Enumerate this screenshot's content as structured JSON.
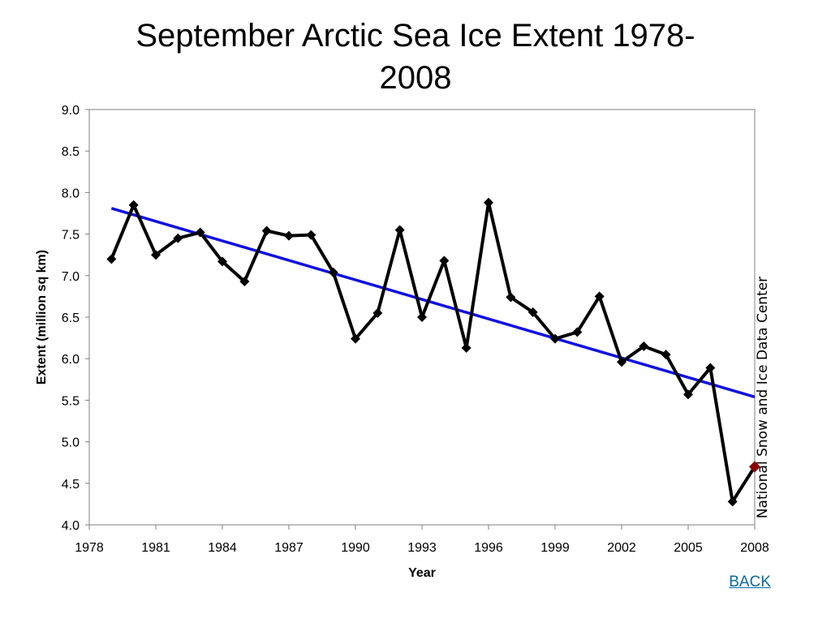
{
  "title_line1": "September Arctic Sea Ice Extent 1978-",
  "title_line2": "2008",
  "source_label": "National Snow and Ice Data Center",
  "back_link": "BACK",
  "chart_data": {
    "type": "line",
    "xlabel": "Year",
    "ylabel": "Extent (million sq km)",
    "xlim": [
      1978,
      2008
    ],
    "ylim": [
      4.0,
      9.0
    ],
    "xticks": [
      "1978",
      "1981",
      "1984",
      "1987",
      "1990",
      "1993",
      "1996",
      "1999",
      "2002",
      "2005",
      "2008"
    ],
    "yticks": [
      "4.0",
      "4.5",
      "5.0",
      "5.5",
      "6.0",
      "6.5",
      "7.0",
      "7.5",
      "8.0",
      "8.5",
      "9.0"
    ],
    "grid": false,
    "series": [
      {
        "color": "#000000",
        "x": [
          1979,
          1980,
          1981,
          1982,
          1983,
          1984,
          1985,
          1986,
          1987,
          1988,
          1989,
          1990,
          1991,
          1992,
          1993,
          1994,
          1995,
          1996,
          1997,
          1998,
          1999,
          2000,
          2001,
          2002,
          2003,
          2004,
          2005,
          2006,
          2007,
          2008
        ],
        "values": [
          7.2,
          7.85,
          7.25,
          7.45,
          7.52,
          7.17,
          6.93,
          7.54,
          7.48,
          7.49,
          7.04,
          6.24,
          6.55,
          7.55,
          6.5,
          7.18,
          6.13,
          7.88,
          6.74,
          6.56,
          6.24,
          6.32,
          6.75,
          5.96,
          6.15,
          6.05,
          5.57,
          5.89,
          4.28,
          4.7
        ]
      }
    ],
    "highlight": {
      "x": 2008,
      "value": 4.7,
      "color": "#8b0000"
    },
    "trend": {
      "color": "#1010e0",
      "x": [
        1979,
        2008
      ],
      "values": [
        7.81,
        5.54
      ]
    }
  }
}
